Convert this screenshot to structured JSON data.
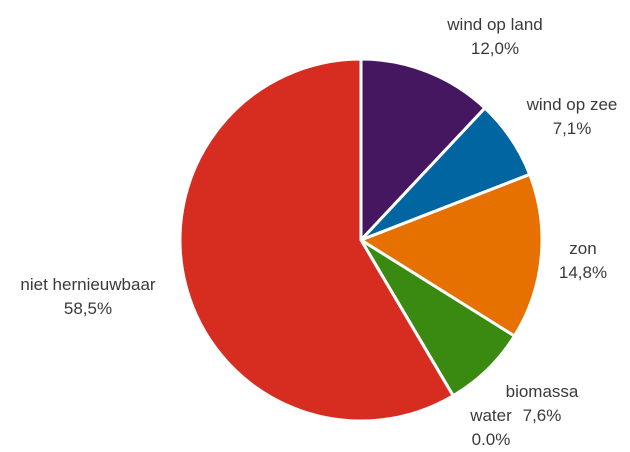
{
  "chart_data": {
    "type": "pie",
    "title": "",
    "slices": [
      {
        "label": "wind op land",
        "value": 12.0,
        "display": "12,0%",
        "color": "#461761"
      },
      {
        "label": "wind op zee",
        "value": 7.1,
        "display": "7,1%",
        "color": "#0065a0"
      },
      {
        "label": "zon",
        "value": 14.8,
        "display": "14,8%",
        "color": "#e67100"
      },
      {
        "label": "biomassa",
        "value": 7.6,
        "display": "7,6%",
        "color": "#3a8a12"
      },
      {
        "label": "water",
        "value": 0.0,
        "display": "0.0%",
        "color": "#1f5fa8"
      },
      {
        "label": "niet hernieuwbaar",
        "value": 58.5,
        "display": "58,5%",
        "color": "#d72d20"
      }
    ],
    "start_angle_deg": 0,
    "direction": "clockwise",
    "legend": "none"
  }
}
